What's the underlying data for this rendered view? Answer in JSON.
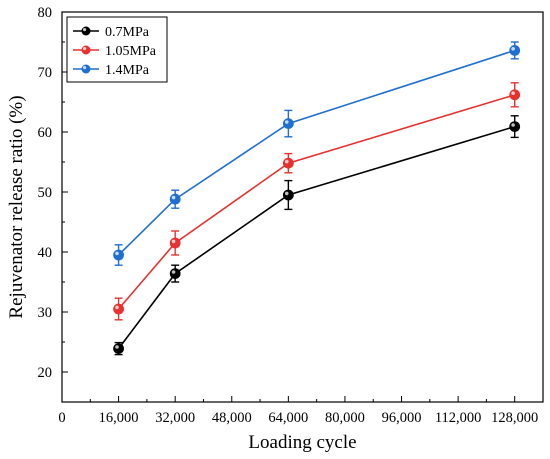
{
  "chart_data": {
    "type": "line",
    "xlabel": "Loading cycle",
    "ylabel": "Rejuvenator release ratio (%)",
    "xlim": [
      0,
      136000
    ],
    "ylim": [
      15,
      80
    ],
    "xticks": [
      0,
      16000,
      32000,
      48000,
      64000,
      80000,
      96000,
      112000,
      128000
    ],
    "xtick_labels": [
      "0",
      "16,000",
      "32,000",
      "48,000",
      "64,000",
      "80,000",
      "96,000",
      "112,000",
      "128,000"
    ],
    "yticks": [
      20,
      30,
      40,
      50,
      60,
      70,
      80
    ],
    "ytick_labels": [
      "20",
      "30",
      "40",
      "50",
      "60",
      "70",
      "80"
    ],
    "legend_position": "top-left",
    "grid": false,
    "x": [
      16000,
      32000,
      64000,
      128000
    ],
    "series": [
      {
        "name": "0.7MPa",
        "color": "#000000",
        "values": [
          23.9,
          36.4,
          49.5,
          60.9
        ],
        "errors": [
          1.0,
          1.4,
          2.4,
          1.8
        ]
      },
      {
        "name": "1.05MPa",
        "color": "#e8312f",
        "values": [
          30.5,
          41.5,
          54.8,
          66.2
        ],
        "errors": [
          1.8,
          2.0,
          1.6,
          2.0
        ]
      },
      {
        "name": "1.4MPa",
        "color": "#1f6fd1",
        "values": [
          39.5,
          48.8,
          61.4,
          73.6
        ],
        "errors": [
          1.7,
          1.5,
          2.2,
          1.4
        ]
      }
    ]
  }
}
